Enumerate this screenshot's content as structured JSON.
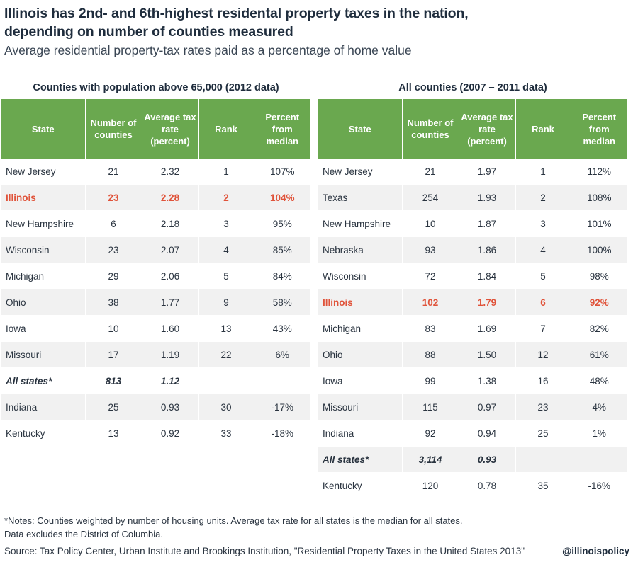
{
  "title_line1": "Illinois has 2nd- and 6th-highest residental property taxes in the nation,",
  "title_line2": "depending on number of counties measured",
  "subtitle": "Average residential property-tax rates paid as a percentage of home value",
  "colors": {
    "header_green": "#6aa84f",
    "highlight": "#e0533a",
    "stripe": "#f1f1f1"
  },
  "left": {
    "title": "Counties with population above 65,000 (2012 data)",
    "headers": [
      "State",
      "Number of counties",
      "Average tax rate (percent)",
      "Rank",
      "Percent from median"
    ],
    "rows": [
      {
        "state": "New Jersey",
        "counties": "21",
        "rate": "2.32",
        "rank": "1",
        "pct": "107%",
        "type": "normal"
      },
      {
        "state": "Illinois",
        "counties": "23",
        "rate": "2.28",
        "rank": "2",
        "pct": "104%",
        "type": "highlight"
      },
      {
        "state": "New Hampshire",
        "counties": "6",
        "rate": "2.18",
        "rank": "3",
        "pct": "95%",
        "type": "normal"
      },
      {
        "state": "Wisconsin",
        "counties": "23",
        "rate": "2.07",
        "rank": "4",
        "pct": "85%",
        "type": "normal"
      },
      {
        "state": "Michigan",
        "counties": "29",
        "rate": "2.06",
        "rank": "5",
        "pct": "84%",
        "type": "normal"
      },
      {
        "state": "Ohio",
        "counties": "38",
        "rate": "1.77",
        "rank": "9",
        "pct": "58%",
        "type": "normal"
      },
      {
        "state": "Iowa",
        "counties": "10",
        "rate": "1.60",
        "rank": "13",
        "pct": "43%",
        "type": "normal"
      },
      {
        "state": "Missouri",
        "counties": "17",
        "rate": "1.19",
        "rank": "22",
        "pct": "6%",
        "type": "normal"
      },
      {
        "state": "All states*",
        "counties": "813",
        "rate": "1.12",
        "rank": "",
        "pct": "",
        "type": "all"
      },
      {
        "state": "Indiana",
        "counties": "25",
        "rate": "0.93",
        "rank": "30",
        "pct": "-17%",
        "type": "normal"
      },
      {
        "state": "Kentucky",
        "counties": "13",
        "rate": "0.92",
        "rank": "33",
        "pct": "-18%",
        "type": "normal"
      }
    ]
  },
  "right": {
    "title": "All counties (2007 – 2011 data)",
    "headers": [
      "State",
      "Number of counties",
      "Average tax rate (percent)",
      "Rank",
      "Percent from median"
    ],
    "rows": [
      {
        "state": "New Jersey",
        "counties": "21",
        "rate": "1.97",
        "rank": "1",
        "pct": "112%",
        "type": "normal"
      },
      {
        "state": "Texas",
        "counties": "254",
        "rate": "1.93",
        "rank": "2",
        "pct": "108%",
        "type": "normal"
      },
      {
        "state": "New Hampshire",
        "counties": "10",
        "rate": "1.87",
        "rank": "3",
        "pct": "101%",
        "type": "normal"
      },
      {
        "state": "Nebraska",
        "counties": "93",
        "rate": "1.86",
        "rank": "4",
        "pct": "100%",
        "type": "normal"
      },
      {
        "state": "Wisconsin",
        "counties": "72",
        "rate": "1.84",
        "rank": "5",
        "pct": "98%",
        "type": "normal"
      },
      {
        "state": "Illinois",
        "counties": "102",
        "rate": "1.79",
        "rank": "6",
        "pct": "92%",
        "type": "highlight"
      },
      {
        "state": "Michigan",
        "counties": "83",
        "rate": "1.69",
        "rank": "7",
        "pct": "82%",
        "type": "normal"
      },
      {
        "state": "Ohio",
        "counties": "88",
        "rate": "1.50",
        "rank": "12",
        "pct": "61%",
        "type": "normal"
      },
      {
        "state": "Iowa",
        "counties": "99",
        "rate": "1.38",
        "rank": "16",
        "pct": "48%",
        "type": "normal"
      },
      {
        "state": "Missouri",
        "counties": "115",
        "rate": "0.97",
        "rank": "23",
        "pct": "4%",
        "type": "normal"
      },
      {
        "state": "Indiana",
        "counties": "92",
        "rate": "0.94",
        "rank": "25",
        "pct": "1%",
        "type": "normal"
      },
      {
        "state": "All states*",
        "counties": "3,114",
        "rate": "0.93",
        "rank": "",
        "pct": "",
        "type": "all"
      },
      {
        "state": "Kentucky",
        "counties": "120",
        "rate": "0.78",
        "rank": "35",
        "pct": "-16%",
        "type": "normal"
      }
    ]
  },
  "notes_line1": "*Notes: Counties weighted by number of housing units. Average tax rate for all states is the median for all states.",
  "notes_line2": "Data excludes the District of Columbia.",
  "source": "Source: Tax Policy Center, Urban Institute and Brookings Institution, \"Residential Property Taxes in the United States 2013\"",
  "handle": "@illinoispolicy"
}
